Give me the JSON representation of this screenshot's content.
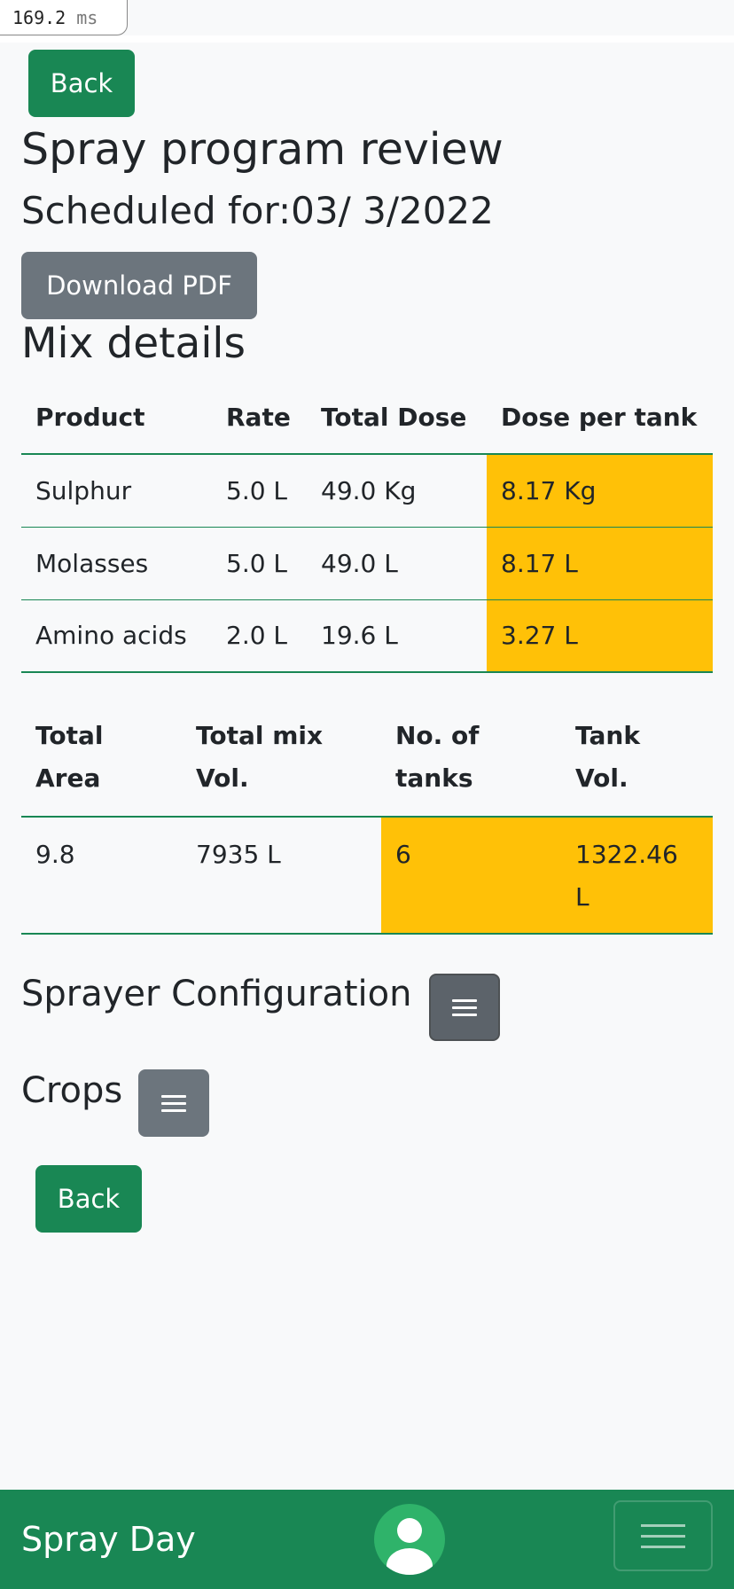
{
  "timer": {
    "value": "169.2",
    "unit": "ms"
  },
  "back_top": {
    "label": "Back"
  },
  "title": "Spray program review",
  "scheduled": "Scheduled for:03/ 3/2022",
  "download": {
    "label": "Download PDF"
  },
  "mix_heading": "Mix details",
  "mix_table": {
    "headers": [
      "Product",
      "Rate",
      "Total Dose",
      "Dose per tank"
    ],
    "rows": [
      [
        "Sulphur",
        "5.0 L",
        "49.0 Kg",
        "8.17 Kg"
      ],
      [
        "Molasses",
        "5.0 L",
        "49.0 L",
        "8.17 L"
      ],
      [
        "Amino acids",
        "2.0 L",
        "19.6 L",
        "3.27 L"
      ]
    ]
  },
  "totals_table": {
    "headers": [
      "Total Area",
      "Total mix Vol.",
      "No. of tanks",
      "Tank Vol."
    ],
    "row": [
      "9.8",
      "7935 L",
      "6",
      "1322.46 L"
    ]
  },
  "sprayer_heading": "Sprayer Configuration",
  "crops_heading": "Crops",
  "back_bottom": {
    "label": "Back"
  },
  "footer": {
    "brand": "Spray Day"
  },
  "colors": {
    "primary_green": "#198754",
    "highlight": "#ffc107",
    "secondary": "#6c757d"
  },
  "icons": {
    "menu": "hamburger-icon",
    "user": "user-avatar-icon"
  }
}
